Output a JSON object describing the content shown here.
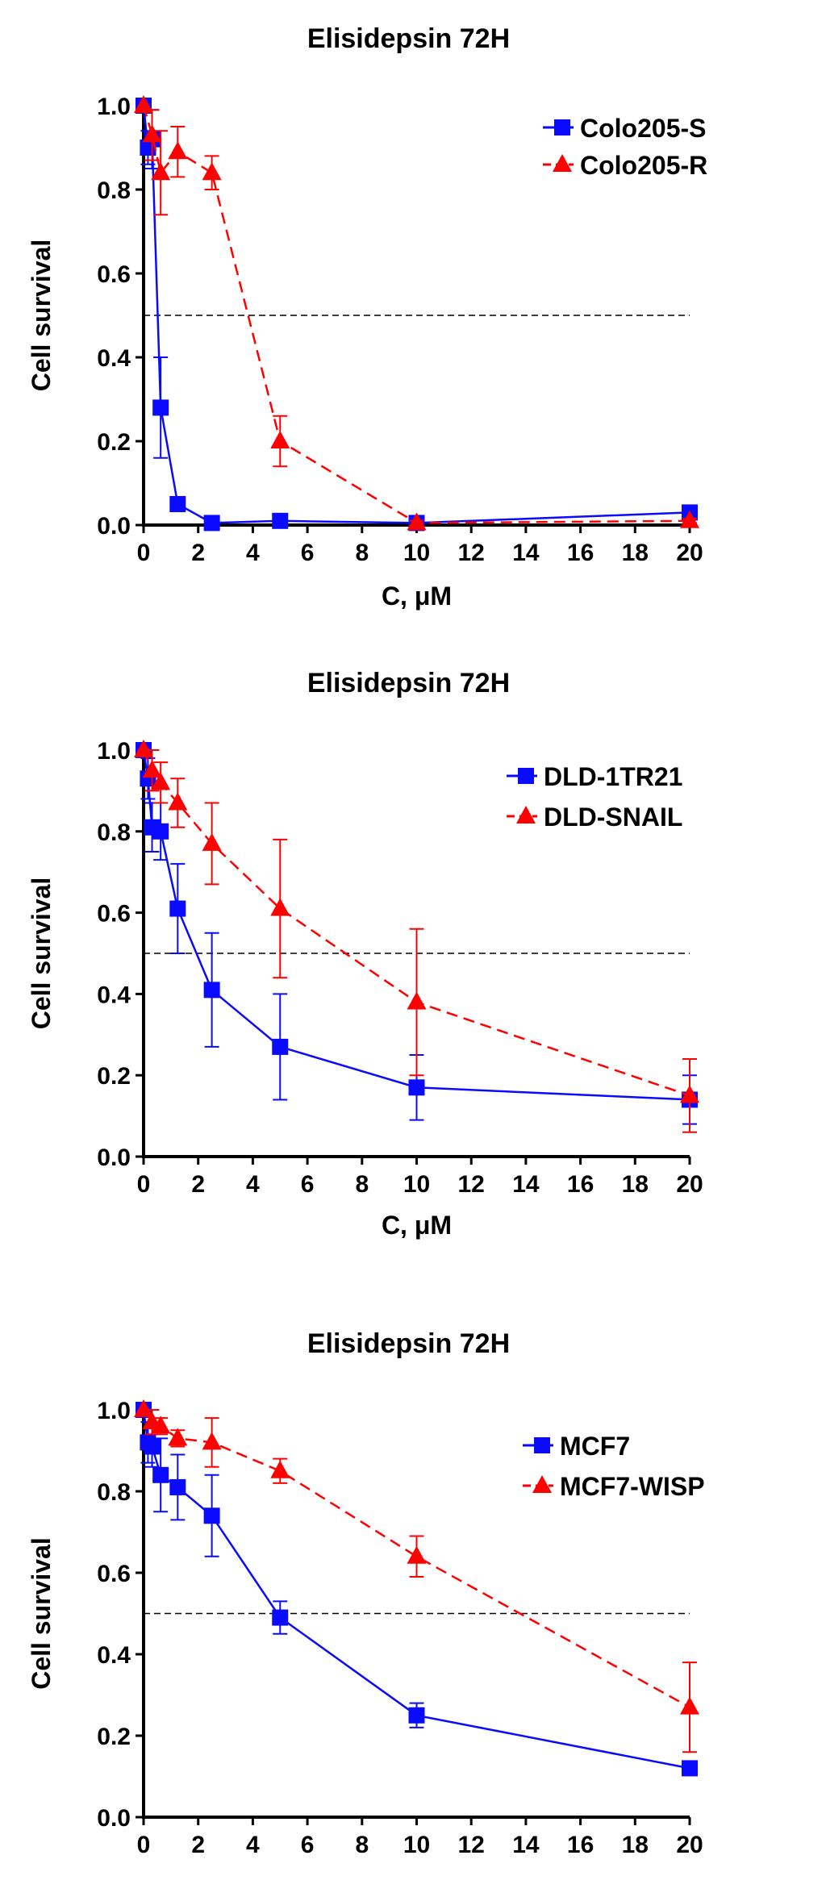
{
  "chart_data": [
    {
      "type": "line",
      "title": "Elisidepsin 72H",
      "xlabel": "C, μM",
      "ylabel": "Cell survival",
      "xlim": [
        0,
        20
      ],
      "ylim": [
        0,
        1.0
      ],
      "xticks": [
        0,
        2,
        4,
        6,
        8,
        10,
        12,
        14,
        16,
        18,
        20
      ],
      "yticks": [
        "0.0",
        "0.2",
        "0.4",
        "0.6",
        "0.8",
        "1.0"
      ],
      "reference_line": 0.5,
      "legend_position": "top-right",
      "series": [
        {
          "name": "Colo205-S",
          "color": "#0a0aff",
          "marker": "square",
          "line": "solid",
          "x": [
            0,
            0.16,
            0.31,
            0.625,
            1.25,
            2.5,
            5,
            10,
            20
          ],
          "y": [
            1.0,
            0.9,
            0.92,
            0.28,
            0.05,
            0.005,
            0.01,
            0.005,
            0.03
          ],
          "err": [
            0.0,
            0.04,
            0.07,
            0.12,
            0.005,
            0.005,
            0.005,
            0.005,
            0.005
          ]
        },
        {
          "name": "Colo205-R",
          "color": "#ff0000",
          "marker": "triangle",
          "line": "dashed",
          "x": [
            0,
            0.31,
            0.625,
            1.25,
            2.5,
            5,
            10,
            20
          ],
          "y": [
            1.0,
            0.93,
            0.84,
            0.89,
            0.84,
            0.2,
            0.005,
            0.01
          ],
          "err": [
            0.0,
            0.06,
            0.1,
            0.06,
            0.04,
            0.06,
            0.005,
            0.005
          ]
        }
      ]
    },
    {
      "type": "line",
      "title": "Elisidepsin 72H",
      "xlabel": "C,  μM",
      "ylabel": "Cell survival",
      "xlim": [
        0,
        20
      ],
      "ylim": [
        0,
        1.0
      ],
      "xticks": [
        0,
        2,
        4,
        6,
        8,
        10,
        12,
        14,
        16,
        18,
        20
      ],
      "yticks": [
        "0.0",
        "0.2",
        "0.4",
        "0.6",
        "0.8",
        "1.0"
      ],
      "reference_line": 0.5,
      "legend_position": "top-right",
      "series": [
        {
          "name": "DLD-1TR21",
          "color": "#0a0aff",
          "marker": "square",
          "line": "solid",
          "x": [
            0,
            0.16,
            0.31,
            0.625,
            1.25,
            2.5,
            5,
            10,
            20
          ],
          "y": [
            1.0,
            0.93,
            0.81,
            0.8,
            0.61,
            0.41,
            0.27,
            0.17,
            0.14
          ],
          "err": [
            0.0,
            0.05,
            0.06,
            0.07,
            0.11,
            0.14,
            0.13,
            0.08,
            0.06
          ]
        },
        {
          "name": "DLD-SNAIL",
          "color": "#ff0000",
          "marker": "triangle",
          "line": "dashed",
          "x": [
            0,
            0.31,
            0.625,
            1.25,
            2.5,
            5,
            10,
            20
          ],
          "y": [
            1.0,
            0.95,
            0.92,
            0.87,
            0.77,
            0.61,
            0.38,
            0.15
          ],
          "err": [
            0.0,
            0.05,
            0.05,
            0.06,
            0.1,
            0.17,
            0.18,
            0.09
          ]
        }
      ]
    },
    {
      "type": "line",
      "title": "Elisidepsin 72H",
      "xlabel": "",
      "ylabel": "Cell survival",
      "xlim": [
        0,
        20
      ],
      "ylim": [
        0,
        1.0
      ],
      "xticks": [
        0,
        2,
        4,
        6,
        8,
        10,
        12,
        14,
        16,
        18,
        20
      ],
      "yticks": [
        "0.0",
        "0.2",
        "0.4",
        "0.6",
        "0.8",
        "1.0"
      ],
      "reference_line": 0.5,
      "legend_position": "top-right",
      "series": [
        {
          "name": "MCF7",
          "color": "#0a0aff",
          "marker": "square",
          "line": "solid",
          "x": [
            0,
            0.16,
            0.31,
            0.625,
            1.25,
            2.5,
            5,
            10,
            20
          ],
          "y": [
            1.0,
            0.92,
            0.91,
            0.84,
            0.81,
            0.74,
            0.49,
            0.25,
            0.12
          ],
          "err": [
            0.0,
            0.05,
            0.05,
            0.09,
            0.08,
            0.1,
            0.04,
            0.03,
            0.01
          ]
        },
        {
          "name": "MCF7-WISP",
          "color": "#ff0000",
          "marker": "triangle",
          "line": "dashed",
          "x": [
            0,
            0.31,
            0.625,
            1.25,
            2.5,
            5,
            10,
            20
          ],
          "y": [
            1.0,
            0.97,
            0.96,
            0.93,
            0.92,
            0.85,
            0.64,
            0.27
          ],
          "err": [
            0.0,
            0.03,
            0.02,
            0.02,
            0.06,
            0.03,
            0.05,
            0.11
          ]
        }
      ]
    }
  ]
}
